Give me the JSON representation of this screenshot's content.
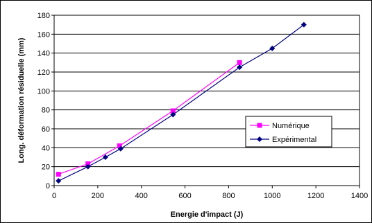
{
  "chart_data": {
    "type": "line",
    "xlabel": "Energie d'impact (J)",
    "ylabel": "Long. déformation résiduelle (mm)",
    "xlim": [
      0,
      1400
    ],
    "ylim": [
      0,
      180
    ],
    "x_ticks": [
      0,
      200,
      400,
      600,
      800,
      1000,
      1200,
      1400
    ],
    "y_ticks": [
      0,
      20,
      40,
      60,
      80,
      100,
      120,
      140,
      160,
      180
    ],
    "grid": "horizontal",
    "legend_position": "right",
    "series": [
      {
        "name": "Numérique",
        "color": "#ff00ff",
        "marker": "square",
        "points": [
          [
            20,
            12
          ],
          [
            155,
            23
          ],
          [
            300,
            42
          ],
          [
            545,
            79
          ],
          [
            850,
            130
          ]
        ]
      },
      {
        "name": "Expérimental",
        "color": "#000080",
        "marker": "diamond",
        "points": [
          [
            20,
            5
          ],
          [
            155,
            20
          ],
          [
            235,
            30
          ],
          [
            305,
            39
          ],
          [
            545,
            75
          ],
          [
            850,
            125
          ],
          [
            1000,
            145
          ],
          [
            1145,
            170
          ]
        ]
      }
    ]
  }
}
